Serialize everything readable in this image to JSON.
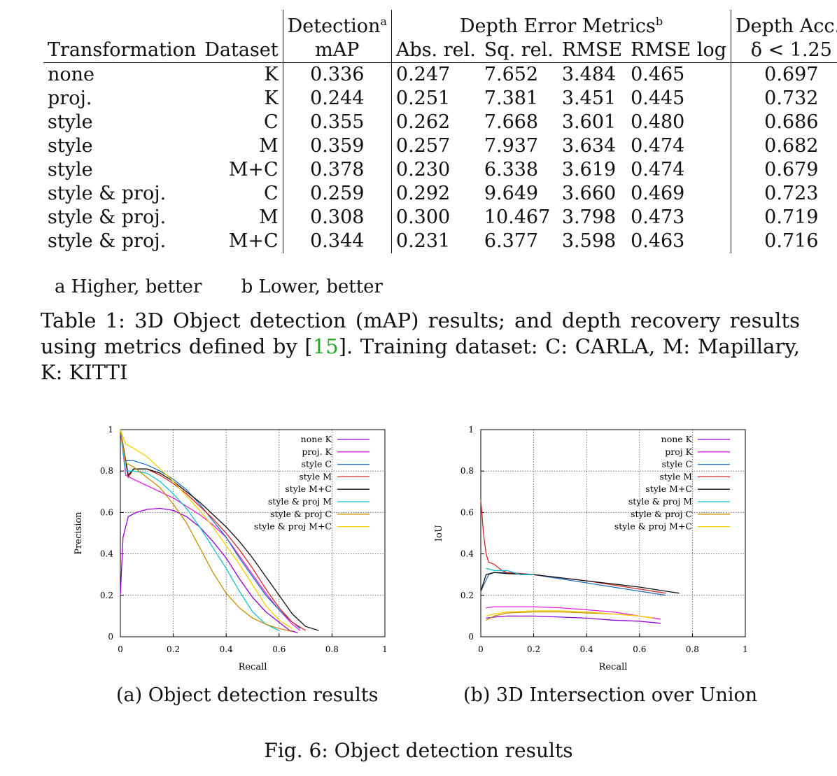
{
  "table": {
    "headers": {
      "transformation": "Transformation",
      "dataset": "Dataset",
      "detection": "Detection",
      "detection_sup": "a",
      "detection_sub": "mAP",
      "depth_error": "Depth Error Metrics",
      "depth_error_sup": "b",
      "abs_rel": "Abs. rel.",
      "sq_rel": "Sq. rel.",
      "rmse": "RMSE",
      "rmse_log": "RMSE log",
      "depth_acc": "Depth Acc.",
      "depth_acc_sup": "a",
      "delta": "δ < 1.25"
    },
    "rows": [
      {
        "transformation": "none",
        "dataset": "K",
        "map": "0.336",
        "abs_rel": "0.247",
        "sq_rel": "7.652",
        "rmse": "3.484",
        "rmse_log": "0.465",
        "delta": "0.697"
      },
      {
        "transformation": "proj.",
        "dataset": "K",
        "map": "0.244",
        "abs_rel": "0.251",
        "sq_rel": "7.381",
        "rmse": "3.451",
        "rmse_log": "0.445",
        "delta": "0.732"
      },
      {
        "transformation": "style",
        "dataset": "C",
        "map": "0.355",
        "abs_rel": "0.262",
        "sq_rel": "7.668",
        "rmse": "3.601",
        "rmse_log": "0.480",
        "delta": "0.686"
      },
      {
        "transformation": "style",
        "dataset": "M",
        "map": "0.359",
        "abs_rel": "0.257",
        "sq_rel": "7.937",
        "rmse": "3.634",
        "rmse_log": "0.474",
        "delta": "0.682"
      },
      {
        "transformation": "style",
        "dataset": "M+C",
        "map": "0.378",
        "abs_rel": "0.230",
        "sq_rel": "6.338",
        "rmse": "3.619",
        "rmse_log": "0.474",
        "delta": "0.679"
      },
      {
        "transformation": "style & proj.",
        "dataset": "C",
        "map": "0.259",
        "abs_rel": "0.292",
        "sq_rel": "9.649",
        "rmse": "3.660",
        "rmse_log": "0.469",
        "delta": "0.723"
      },
      {
        "transformation": "style & proj.",
        "dataset": "M",
        "map": "0.308",
        "abs_rel": "0.300",
        "sq_rel": "10.467",
        "rmse": "3.798",
        "rmse_log": "0.473",
        "delta": "0.719"
      },
      {
        "transformation": "style & proj.",
        "dataset": "M+C",
        "map": "0.344",
        "abs_rel": "0.231",
        "sq_rel": "6.377",
        "rmse": "3.598",
        "rmse_log": "0.463",
        "delta": "0.716"
      }
    ],
    "footnote_a": "a Higher, better",
    "footnote_b": "b Lower, better",
    "caption_prefix": "Table 1:  3D Object detection (mAP) results; and depth recovery results using metrics defined by [",
    "caption_cite": "15",
    "caption_suffix": "]. Training dataset: C: CARLA, M: Mapillary, K: KITTI"
  },
  "subcaption_a": "(a) Object detection results",
  "subcaption_b": "(b) 3D Intersection over Union",
  "figure_caption": "Fig. 6: Object detection results",
  "chart_data": [
    {
      "type": "line",
      "xlabel": "Recall",
      "ylabel": "Precision",
      "xlim": [
        0,
        1
      ],
      "ylim": [
        0,
        1
      ],
      "xticks": [
        "0",
        "0.2",
        "0.4",
        "0.6",
        "0.8",
        "1"
      ],
      "yticks": [
        "0",
        "0.2",
        "0.4",
        "0.6",
        "0.8",
        "1"
      ],
      "grid": true,
      "legend_position": "top-right",
      "series": [
        {
          "name": "none K",
          "color": "#9400d3",
          "points": [
            [
              0,
              0.2
            ],
            [
              0.01,
              0.48
            ],
            [
              0.03,
              0.58
            ],
            [
              0.06,
              0.6
            ],
            [
              0.1,
              0.615
            ],
            [
              0.15,
              0.62
            ],
            [
              0.2,
              0.61
            ],
            [
              0.25,
              0.58
            ],
            [
              0.3,
              0.53
            ],
            [
              0.35,
              0.46
            ],
            [
              0.4,
              0.38
            ],
            [
              0.45,
              0.28
            ],
            [
              0.5,
              0.19
            ],
            [
              0.55,
              0.12
            ],
            [
              0.6,
              0.07
            ],
            [
              0.64,
              0.03
            ],
            [
              0.67,
              0.02
            ]
          ]
        },
        {
          "name": "proj. K",
          "color": "#e020e0",
          "points": [
            [
              0,
              1.0
            ],
            [
              0.02,
              0.78
            ],
            [
              0.05,
              0.76
            ],
            [
              0.1,
              0.73
            ],
            [
              0.15,
              0.7
            ],
            [
              0.2,
              0.67
            ],
            [
              0.25,
              0.63
            ],
            [
              0.3,
              0.59
            ],
            [
              0.35,
              0.54
            ],
            [
              0.4,
              0.48
            ],
            [
              0.45,
              0.39
            ],
            [
              0.5,
              0.3
            ],
            [
              0.55,
              0.21
            ],
            [
              0.6,
              0.13
            ],
            [
              0.65,
              0.06
            ],
            [
              0.68,
              0.03
            ]
          ]
        },
        {
          "name": "style C",
          "color": "#1f6fbf",
          "points": [
            [
              0,
              1.0
            ],
            [
              0.02,
              0.85
            ],
            [
              0.05,
              0.85
            ],
            [
              0.1,
              0.83
            ],
            [
              0.15,
              0.8
            ],
            [
              0.2,
              0.76
            ],
            [
              0.25,
              0.71
            ],
            [
              0.3,
              0.64
            ],
            [
              0.35,
              0.56
            ],
            [
              0.4,
              0.48
            ],
            [
              0.45,
              0.38
            ],
            [
              0.5,
              0.29
            ],
            [
              0.55,
              0.2
            ],
            [
              0.6,
              0.13
            ],
            [
              0.65,
              0.07
            ],
            [
              0.68,
              0.04
            ]
          ]
        },
        {
          "name": "style M",
          "color": "#d62728",
          "points": [
            [
              0,
              1.0
            ],
            [
              0.03,
              0.77
            ],
            [
              0.05,
              0.81
            ],
            [
              0.1,
              0.81
            ],
            [
              0.15,
              0.78
            ],
            [
              0.2,
              0.74
            ],
            [
              0.25,
              0.69
            ],
            [
              0.3,
              0.63
            ],
            [
              0.35,
              0.57
            ],
            [
              0.4,
              0.5
            ],
            [
              0.45,
              0.42
            ],
            [
              0.5,
              0.33
            ],
            [
              0.55,
              0.23
            ],
            [
              0.6,
              0.14
            ],
            [
              0.65,
              0.07
            ],
            [
              0.7,
              0.03
            ]
          ]
        },
        {
          "name": "style M+C",
          "color": "#111111",
          "points": [
            [
              0,
              1.0
            ],
            [
              0.03,
              0.78
            ],
            [
              0.05,
              0.81
            ],
            [
              0.1,
              0.81
            ],
            [
              0.15,
              0.79
            ],
            [
              0.2,
              0.75
            ],
            [
              0.25,
              0.7
            ],
            [
              0.3,
              0.65
            ],
            [
              0.35,
              0.59
            ],
            [
              0.4,
              0.53
            ],
            [
              0.45,
              0.46
            ],
            [
              0.5,
              0.38
            ],
            [
              0.55,
              0.29
            ],
            [
              0.6,
              0.2
            ],
            [
              0.65,
              0.11
            ],
            [
              0.7,
              0.05
            ],
            [
              0.75,
              0.03
            ]
          ]
        },
        {
          "name": "style & proj M",
          "color": "#17becf",
          "points": [
            [
              0,
              1.0
            ],
            [
              0.02,
              0.8
            ],
            [
              0.05,
              0.8
            ],
            [
              0.1,
              0.79
            ],
            [
              0.15,
              0.75
            ],
            [
              0.2,
              0.69
            ],
            [
              0.25,
              0.62
            ],
            [
              0.3,
              0.53
            ],
            [
              0.35,
              0.43
            ],
            [
              0.4,
              0.33
            ],
            [
              0.45,
              0.22
            ],
            [
              0.5,
              0.12
            ],
            [
              0.55,
              0.06
            ],
            [
              0.6,
              0.03
            ]
          ]
        },
        {
          "name": "style & proj C",
          "color": "#c89000",
          "points": [
            [
              0,
              1.0
            ],
            [
              0.02,
              0.84
            ],
            [
              0.05,
              0.82
            ],
            [
              0.1,
              0.77
            ],
            [
              0.15,
              0.72
            ],
            [
              0.2,
              0.64
            ],
            [
              0.25,
              0.55
            ],
            [
              0.3,
              0.43
            ],
            [
              0.35,
              0.31
            ],
            [
              0.4,
              0.21
            ],
            [
              0.45,
              0.14
            ],
            [
              0.5,
              0.09
            ],
            [
              0.55,
              0.06
            ],
            [
              0.6,
              0.04
            ],
            [
              0.65,
              0.025
            ]
          ]
        },
        {
          "name": "style & proj M+C",
          "color": "#f5d000",
          "points": [
            [
              0,
              1.0
            ],
            [
              0.02,
              0.93
            ],
            [
              0.05,
              0.91
            ],
            [
              0.1,
              0.87
            ],
            [
              0.15,
              0.81
            ],
            [
              0.2,
              0.75
            ],
            [
              0.25,
              0.68
            ],
            [
              0.3,
              0.61
            ],
            [
              0.35,
              0.53
            ],
            [
              0.4,
              0.44
            ],
            [
              0.45,
              0.35
            ],
            [
              0.5,
              0.25
            ],
            [
              0.55,
              0.15
            ],
            [
              0.6,
              0.08
            ],
            [
              0.65,
              0.04
            ]
          ]
        }
      ]
    },
    {
      "type": "line",
      "xlabel": "Recall",
      "ylabel": "IoU",
      "xlim": [
        0,
        1
      ],
      "ylim": [
        0,
        1
      ],
      "xticks": [
        "0",
        "0.2",
        "0.4",
        "0.6",
        "0.8",
        "1"
      ],
      "yticks": [
        "0",
        "0.2",
        "0.4",
        "0.6",
        "0.8",
        "1"
      ],
      "grid": true,
      "legend_position": "top-right",
      "series": [
        {
          "name": "none K",
          "color": "#9400d3",
          "points": [
            [
              0.02,
              0.09
            ],
            [
              0.05,
              0.095
            ],
            [
              0.1,
              0.1
            ],
            [
              0.2,
              0.1
            ],
            [
              0.3,
              0.095
            ],
            [
              0.4,
              0.09
            ],
            [
              0.5,
              0.08
            ],
            [
              0.6,
              0.075
            ],
            [
              0.68,
              0.065
            ]
          ]
        },
        {
          "name": "proj K",
          "color": "#e020e0",
          "points": [
            [
              0.02,
              0.14
            ],
            [
              0.05,
              0.145
            ],
            [
              0.1,
              0.145
            ],
            [
              0.2,
              0.145
            ],
            [
              0.3,
              0.14
            ],
            [
              0.4,
              0.13
            ],
            [
              0.5,
              0.12
            ],
            [
              0.6,
              0.1
            ],
            [
              0.68,
              0.085
            ]
          ]
        },
        {
          "name": "style C",
          "color": "#1f6fbf",
          "points": [
            [
              0,
              0.22
            ],
            [
              0.03,
              0.3
            ],
            [
              0.05,
              0.31
            ],
            [
              0.1,
              0.31
            ],
            [
              0.2,
              0.3
            ],
            [
              0.3,
              0.28
            ],
            [
              0.4,
              0.26
            ],
            [
              0.5,
              0.24
            ],
            [
              0.6,
              0.22
            ],
            [
              0.7,
              0.2
            ]
          ]
        },
        {
          "name": "style M",
          "color": "#d62728",
          "points": [
            [
              0,
              0.66
            ],
            [
              0.01,
              0.5
            ],
            [
              0.02,
              0.4
            ],
            [
              0.03,
              0.36
            ],
            [
              0.05,
              0.35
            ],
            [
              0.08,
              0.32
            ],
            [
              0.1,
              0.31
            ],
            [
              0.2,
              0.3
            ],
            [
              0.3,
              0.285
            ],
            [
              0.4,
              0.27
            ],
            [
              0.5,
              0.25
            ],
            [
              0.6,
              0.23
            ],
            [
              0.7,
              0.21
            ]
          ]
        },
        {
          "name": "style M+C",
          "color": "#111111",
          "points": [
            [
              0,
              0.22
            ],
            [
              0.02,
              0.3
            ],
            [
              0.05,
              0.31
            ],
            [
              0.1,
              0.305
            ],
            [
              0.2,
              0.3
            ],
            [
              0.3,
              0.285
            ],
            [
              0.4,
              0.27
            ],
            [
              0.5,
              0.255
            ],
            [
              0.6,
              0.24
            ],
            [
              0.7,
              0.22
            ],
            [
              0.75,
              0.21
            ]
          ]
        },
        {
          "name": "style & proj M",
          "color": "#17becf",
          "points": [
            [
              0.02,
              0.33
            ],
            [
              0.05,
              0.32
            ],
            [
              0.1,
              0.32
            ],
            [
              0.15,
              0.3
            ],
            [
              0.2,
              0.3
            ]
          ]
        },
        {
          "name": "style & proj C",
          "color": "#c89000",
          "points": [
            [
              0.02,
              0.08
            ],
            [
              0.05,
              0.1
            ],
            [
              0.1,
              0.115
            ],
            [
              0.2,
              0.12
            ],
            [
              0.3,
              0.12
            ],
            [
              0.4,
              0.115
            ],
            [
              0.5,
              0.11
            ],
            [
              0.6,
              0.1
            ],
            [
              0.65,
              0.09
            ]
          ]
        },
        {
          "name": "style & proj M+C",
          "color": "#f5d000",
          "points": [
            [
              0.02,
              0.1
            ],
            [
              0.05,
              0.11
            ],
            [
              0.1,
              0.12
            ],
            [
              0.2,
              0.125
            ],
            [
              0.3,
              0.125
            ],
            [
              0.4,
              0.12
            ],
            [
              0.5,
              0.11
            ],
            [
              0.6,
              0.1
            ],
            [
              0.65,
              0.09
            ]
          ]
        }
      ]
    }
  ]
}
